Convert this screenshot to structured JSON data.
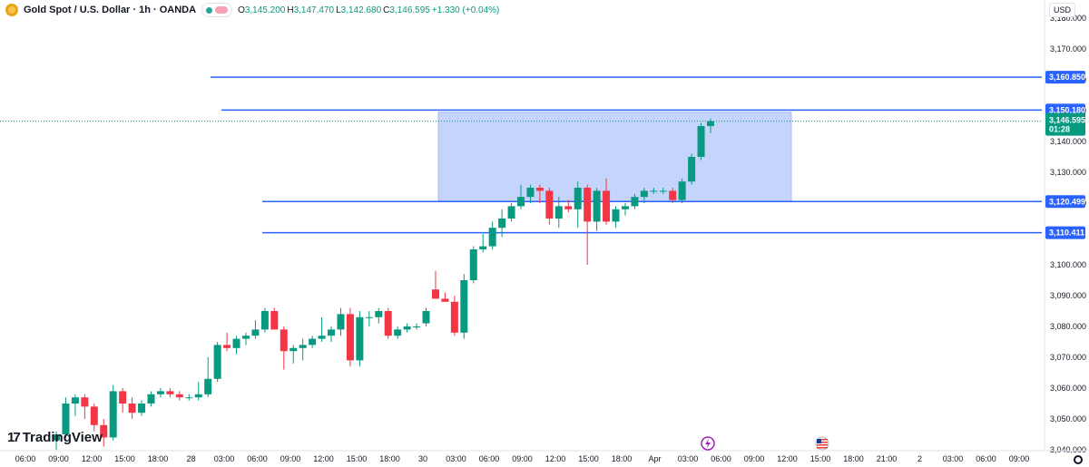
{
  "header": {
    "symbol_title": "Gold Spot / U.S. Dollar · 1h · OANDA",
    "o_label": "O",
    "o_value": "3,145.200",
    "h_label": "H",
    "h_value": "3,147.470",
    "l_label": "L",
    "l_value": "3,142.680",
    "c_label": "C",
    "c_value": "3,146.595",
    "change": "+1.330 (+0.04%)"
  },
  "currency": "USD",
  "logo_text": "TradingView",
  "colors": {
    "up": "#089981",
    "down": "#f23645",
    "line": "#2962ff",
    "zone": "#bbccfa",
    "last_price": "#089981",
    "background": "#ffffff"
  },
  "chart_data": {
    "type": "candlestick",
    "title": "Gold Spot / U.S. Dollar · 1h · OANDA",
    "ylim": [
      3040,
      3181
    ],
    "price_ticks": [
      "3,040.000",
      "3,050.000",
      "3,060.000",
      "3,070.000",
      "3,080.000",
      "3,090.000",
      "3,100.000",
      "3,110.000",
      "3,120.000",
      "3,130.000",
      "3,140.000",
      "3,150.000",
      "3,160.000",
      "3,170.000",
      "3,180.000"
    ],
    "time_labels": [
      "06:00",
      "09:00",
      "12:00",
      "15:00",
      "18:00",
      "28",
      "03:00",
      "06:00",
      "09:00",
      "12:00",
      "15:00",
      "18:00",
      "30",
      "03:00",
      "06:00",
      "09:00",
      "12:00",
      "15:00",
      "18:00",
      "Apr",
      "03:00",
      "06:00",
      "09:00",
      "12:00",
      "15:00",
      "18:00",
      "21:00",
      "2",
      "03:00",
      "06:00",
      "09:00"
    ],
    "candles": [
      {
        "o": 3043,
        "h": 3046,
        "l": 3040,
        "c": 3045
      },
      {
        "o": 3045,
        "h": 3057,
        "l": 3044,
        "c": 3055
      },
      {
        "o": 3055,
        "h": 3058,
        "l": 3051,
        "c": 3057
      },
      {
        "o": 3057,
        "h": 3058,
        "l": 3050,
        "c": 3054
      },
      {
        "o": 3054,
        "h": 3055,
        "l": 3046,
        "c": 3048
      },
      {
        "o": 3048,
        "h": 3050,
        "l": 3041,
        "c": 3044
      },
      {
        "o": 3044,
        "h": 3061,
        "l": 3043,
        "c": 3059
      },
      {
        "o": 3059,
        "h": 3060,
        "l": 3052,
        "c": 3055
      },
      {
        "o": 3055,
        "h": 3057,
        "l": 3050,
        "c": 3052
      },
      {
        "o": 3052,
        "h": 3056,
        "l": 3051,
        "c": 3055
      },
      {
        "o": 3055,
        "h": 3059,
        "l": 3054,
        "c": 3058
      },
      {
        "o": 3058,
        "h": 3060,
        "l": 3057,
        "c": 3059
      },
      {
        "o": 3059,
        "h": 3060,
        "l": 3057,
        "c": 3058
      },
      {
        "o": 3058,
        "h": 3059,
        "l": 3056,
        "c": 3057
      },
      {
        "o": 3057,
        "h": 3058,
        "l": 3056,
        "c": 3057
      },
      {
        "o": 3057,
        "h": 3062,
        "l": 3056,
        "c": 3058
      },
      {
        "o": 3058,
        "h": 3070,
        "l": 3057,
        "c": 3063
      },
      {
        "o": 3063,
        "h": 3075,
        "l": 3062,
        "c": 3074
      },
      {
        "o": 3074,
        "h": 3078,
        "l": 3072,
        "c": 3073
      },
      {
        "o": 3073,
        "h": 3077,
        "l": 3071,
        "c": 3076
      },
      {
        "o": 3076,
        "h": 3078,
        "l": 3074,
        "c": 3077
      },
      {
        "o": 3077,
        "h": 3082,
        "l": 3076,
        "c": 3079
      },
      {
        "o": 3079,
        "h": 3086,
        "l": 3078,
        "c": 3085
      },
      {
        "o": 3085,
        "h": 3086,
        "l": 3080,
        "c": 3079
      },
      {
        "o": 3079,
        "h": 3080,
        "l": 3066,
        "c": 3072
      },
      {
        "o": 3072,
        "h": 3074,
        "l": 3068,
        "c": 3073
      },
      {
        "o": 3073,
        "h": 3076,
        "l": 3069,
        "c": 3074
      },
      {
        "o": 3074,
        "h": 3077,
        "l": 3073,
        "c": 3076
      },
      {
        "o": 3076,
        "h": 3083,
        "l": 3075,
        "c": 3077
      },
      {
        "o": 3077,
        "h": 3080,
        "l": 3075,
        "c": 3079
      },
      {
        "o": 3079,
        "h": 3086,
        "l": 3077,
        "c": 3084
      },
      {
        "o": 3084,
        "h": 3086,
        "l": 3067,
        "c": 3069
      },
      {
        "o": 3069,
        "h": 3085,
        "l": 3067,
        "c": 3083
      },
      {
        "o": 3083,
        "h": 3085,
        "l": 3080,
        "c": 3083
      },
      {
        "o": 3083,
        "h": 3086,
        "l": 3081,
        "c": 3085
      },
      {
        "o": 3085,
        "h": 3086,
        "l": 3076,
        "c": 3077
      },
      {
        "o": 3077,
        "h": 3080,
        "l": 3076,
        "c": 3079
      },
      {
        "o": 3079,
        "h": 3081,
        "l": 3078,
        "c": 3080
      },
      {
        "o": 3080,
        "h": 3081,
        "l": 3079,
        "c": 3080
      },
      {
        "o": 3081,
        "h": 3086,
        "l": 3080,
        "c": 3085
      },
      {
        "o": 3092,
        "h": 3098,
        "l": 3089,
        "c": 3089
      },
      {
        "o": 3089,
        "h": 3091,
        "l": 3088,
        "c": 3088
      },
      {
        "o": 3088,
        "h": 3090,
        "l": 3077,
        "c": 3078
      },
      {
        "o": 3078,
        "h": 3097,
        "l": 3076,
        "c": 3095
      },
      {
        "o": 3095,
        "h": 3106,
        "l": 3094,
        "c": 3105
      },
      {
        "o": 3105,
        "h": 3110,
        "l": 3104,
        "c": 3106
      },
      {
        "o": 3106,
        "h": 3114,
        "l": 3105,
        "c": 3112
      },
      {
        "o": 3112,
        "h": 3118,
        "l": 3109,
        "c": 3115
      },
      {
        "o": 3115,
        "h": 3120,
        "l": 3114,
        "c": 3119
      },
      {
        "o": 3119,
        "h": 3126,
        "l": 3118,
        "c": 3122
      },
      {
        "o": 3122,
        "h": 3126,
        "l": 3120,
        "c": 3125
      },
      {
        "o": 3125,
        "h": 3126,
        "l": 3120,
        "c": 3124
      },
      {
        "o": 3124,
        "h": 3125,
        "l": 3113,
        "c": 3115
      },
      {
        "o": 3115,
        "h": 3122,
        "l": 3112,
        "c": 3119
      },
      {
        "o": 3119,
        "h": 3121,
        "l": 3117,
        "c": 3118
      },
      {
        "o": 3118,
        "h": 3127,
        "l": 3112,
        "c": 3125
      },
      {
        "o": 3125,
        "h": 3126,
        "l": 3100,
        "c": 3114
      },
      {
        "o": 3114,
        "h": 3125,
        "l": 3111,
        "c": 3124
      },
      {
        "o": 3124,
        "h": 3128,
        "l": 3113,
        "c": 3114
      },
      {
        "o": 3114,
        "h": 3119,
        "l": 3112,
        "c": 3118
      },
      {
        "o": 3118,
        "h": 3120,
        "l": 3116,
        "c": 3119
      },
      {
        "o": 3119,
        "h": 3123,
        "l": 3118,
        "c": 3122
      },
      {
        "o": 3122,
        "h": 3125,
        "l": 3120,
        "c": 3124
      },
      {
        "o": 3124,
        "h": 3125,
        "l": 3123,
        "c": 3124
      },
      {
        "o": 3124,
        "h": 3125,
        "l": 3123,
        "c": 3124
      },
      {
        "o": 3124,
        "h": 3125,
        "l": 3120,
        "c": 3121
      },
      {
        "o": 3121,
        "h": 3128,
        "l": 3120,
        "c": 3127
      },
      {
        "o": 3127,
        "h": 3136,
        "l": 3126,
        "c": 3135
      },
      {
        "o": 3135,
        "h": 3146,
        "l": 3134,
        "c": 3145
      },
      {
        "o": 3145,
        "h": 3147.47,
        "l": 3142.68,
        "c": 3146.595
      }
    ],
    "horizontal_lines": [
      {
        "label": "3,160.850",
        "price": 3160.85
      },
      {
        "label": "3,150.180",
        "price": 3150.18
      },
      {
        "label": "3,120.499",
        "price": 3120.499
      },
      {
        "label": "3,110.411",
        "price": 3110.411
      }
    ],
    "zone": {
      "top": 3149.5,
      "bottom": 3120.5
    },
    "last_price": {
      "label": "3,146.595",
      "countdown": "01:28",
      "price": 3146.595
    },
    "grid": false
  }
}
